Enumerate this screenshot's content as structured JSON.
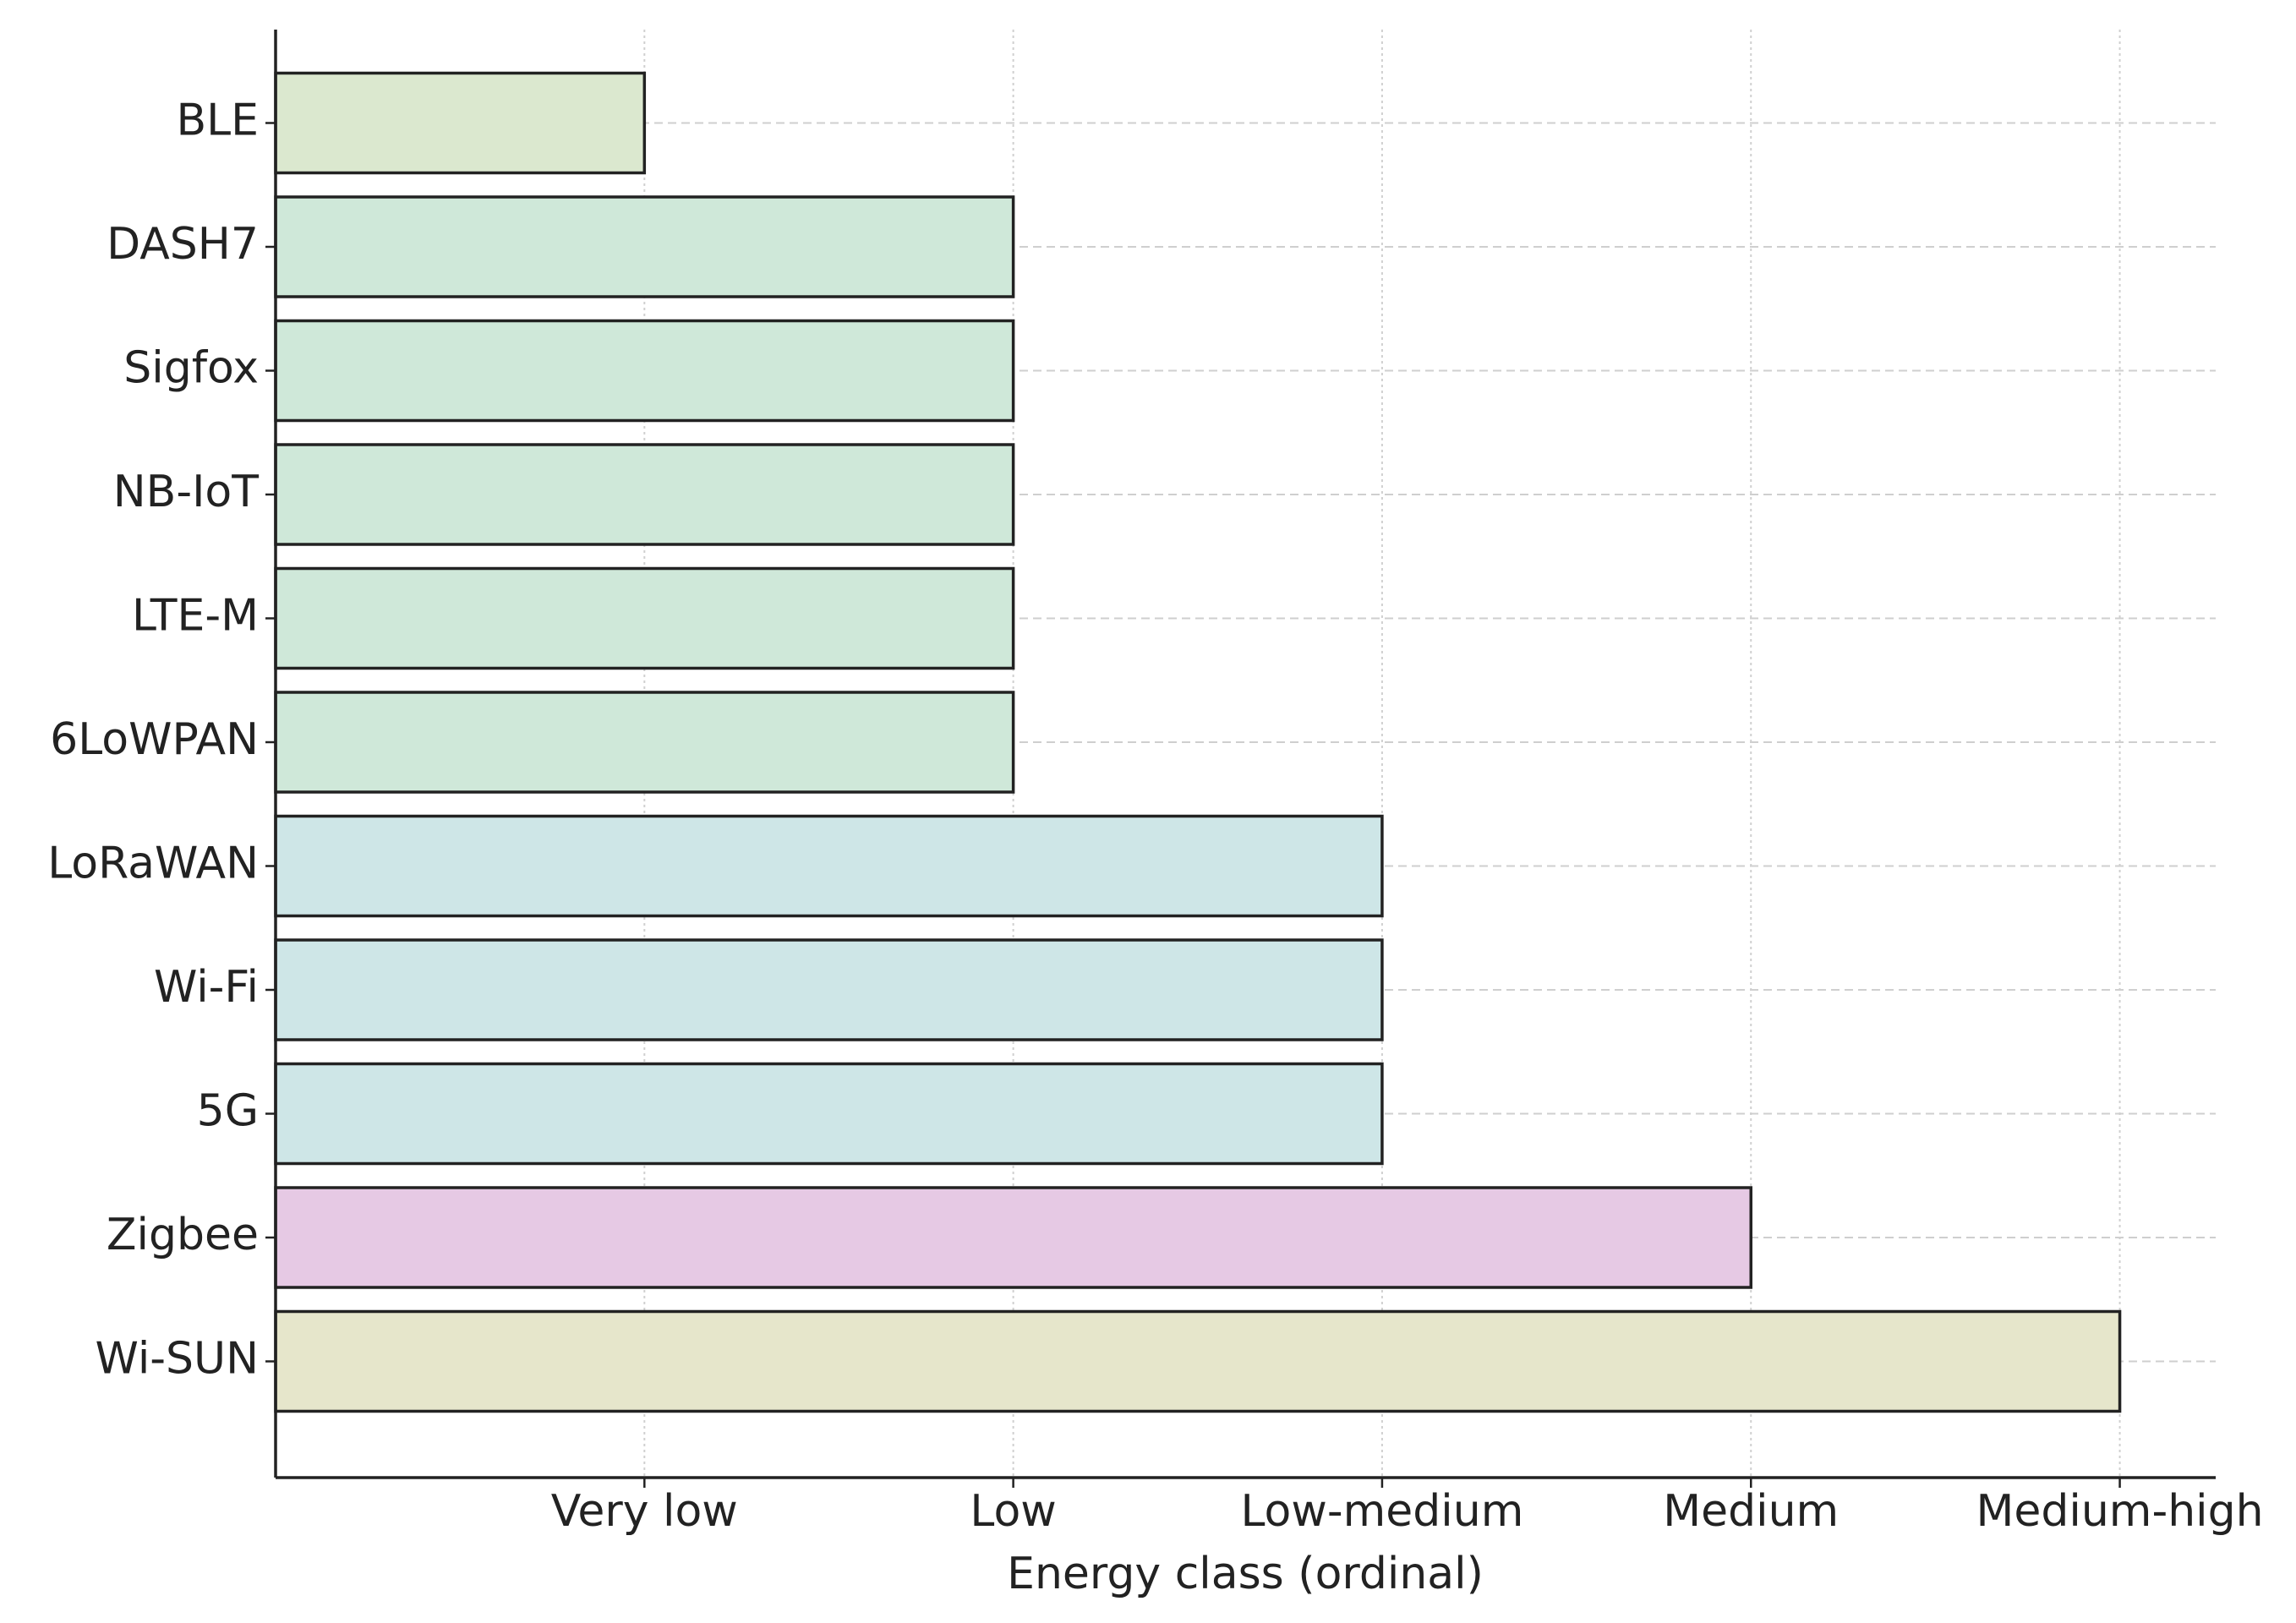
{
  "chart_data": {
    "type": "barh",
    "xlabel": "Energy class (ordinal)",
    "categories": [
      "BLE",
      "DASH7",
      "Sigfox",
      "NB-IoT",
      "LTE-M",
      "6LoWPAN",
      "LoRaWAN",
      "Wi-Fi",
      "5G",
      "Zigbee",
      "Wi-SUN"
    ],
    "values": [
      1,
      2,
      2,
      2,
      2,
      2,
      3,
      3,
      3,
      4,
      5
    ],
    "colors": [
      "#dbe8cf",
      "#cfe8d9",
      "#cfe8d9",
      "#cfe8d9",
      "#cfe8d9",
      "#cfe8d9",
      "#cee6e7",
      "#cee6e7",
      "#cee6e7",
      "#e6c9e4",
      "#e6e6cb"
    ],
    "xlim": [
      0,
      5.26
    ],
    "xticks": [
      {
        "value": 1,
        "label": "Very low"
      },
      {
        "value": 2,
        "label": "Low"
      },
      {
        "value": 3,
        "label": "Low-medium"
      },
      {
        "value": 4,
        "label": "Medium"
      },
      {
        "value": 5,
        "label": "Medium-high"
      }
    ],
    "grid": true
  }
}
